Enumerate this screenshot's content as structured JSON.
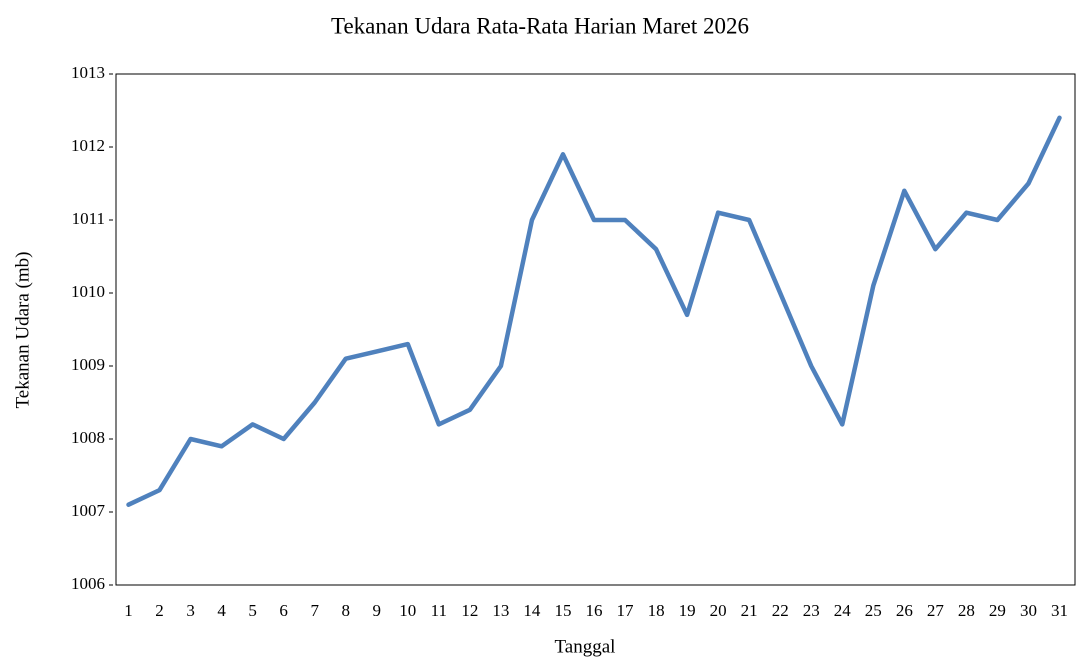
{
  "chart_data": {
    "type": "line",
    "title": "Tekanan Udara Rata-Rata Harian Maret 2026",
    "x_label": "Tanggal",
    "y_label": "Tekanan Udara (mb)",
    "categories": [
      "1",
      "2",
      "3",
      "4",
      "5",
      "6",
      "7",
      "8",
      "9",
      "10",
      "11",
      "12",
      "13",
      "14",
      "15",
      "16",
      "17",
      "18",
      "19",
      "20",
      "21",
      "22",
      "23",
      "24",
      "25",
      "26",
      "27",
      "28",
      "29",
      "30",
      "31"
    ],
    "values": [
      1007.1,
      1007.3,
      1008.0,
      1007.9,
      1008.2,
      1008.0,
      1008.5,
      1009.1,
      1009.2,
      1009.3,
      1008.2,
      1008.4,
      1009.0,
      1011.0,
      1011.9,
      1011.0,
      1011.0,
      1010.6,
      1009.7,
      1011.1,
      1011.0,
      1010.0,
      1009.0,
      1008.2,
      1010.1,
      1011.4,
      1010.6,
      1011.1,
      1011.0,
      1011.5,
      1012.4
    ],
    "color": "#4f81bd",
    "ylim": [
      1006,
      1013
    ],
    "yticks": [
      1006,
      1007,
      1008,
      1009,
      1010,
      1011,
      1012,
      1013
    ],
    "grid": false
  }
}
